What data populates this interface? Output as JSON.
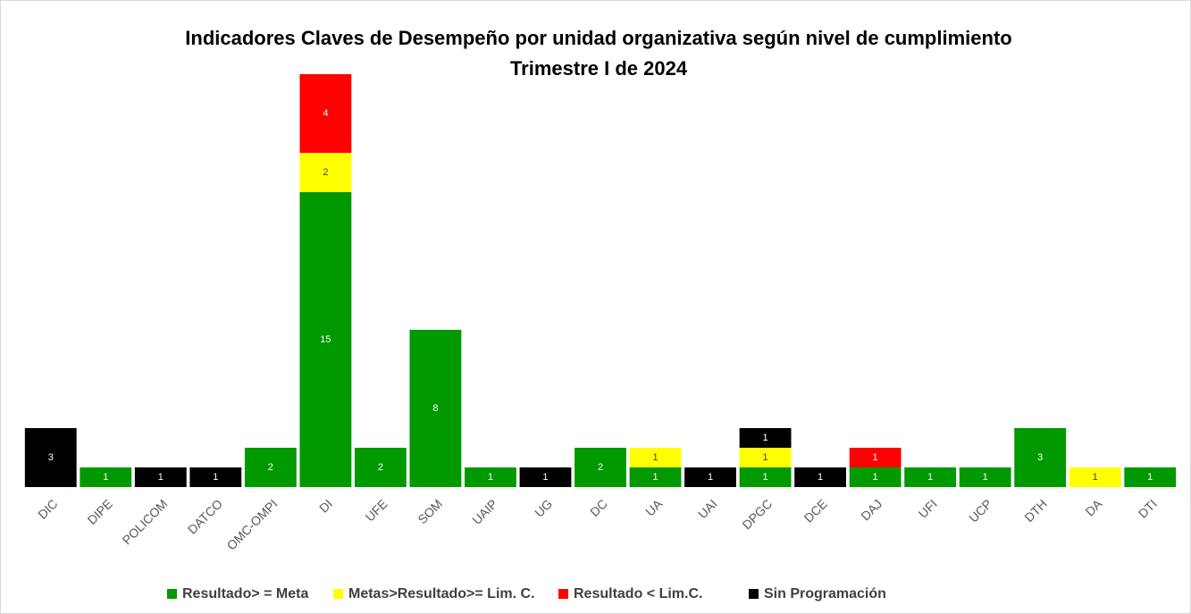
{
  "chart_data": {
    "type": "stacked_bar",
    "title": "Indicadores Claves de Desempeño por unidad organizativa según nivel de cumplimiento",
    "subtitle": "Trimestre I de 2024",
    "categories": [
      "DIC",
      "DIPE",
      "POLICOM",
      "DATCO",
      "OMC-OMPI",
      "DI",
      "UFE",
      "SOM",
      "UAIP",
      "UG",
      "DC",
      "UA",
      "UAI",
      "DPGC",
      "DCE",
      "DAJ",
      "UFI",
      "UCP",
      "DTH",
      "DA",
      "DTI"
    ],
    "series": [
      {
        "name": "Resultado> = Meta",
        "color": "#009900",
        "values": [
          null,
          1,
          null,
          null,
          2,
          15,
          2,
          8,
          1,
          null,
          2,
          1,
          null,
          1,
          null,
          1,
          1,
          1,
          3,
          null,
          1
        ]
      },
      {
        "name": "Metas>Resultado>= Lim. C.",
        "color": "#ffff00",
        "values": [
          null,
          null,
          null,
          null,
          null,
          2,
          null,
          null,
          null,
          null,
          null,
          1,
          null,
          1,
          null,
          null,
          null,
          null,
          null,
          1,
          null
        ]
      },
      {
        "name": "Resultado < Lim.C.",
        "color": "#ff0000",
        "values": [
          null,
          null,
          null,
          null,
          null,
          4,
          null,
          null,
          null,
          null,
          null,
          null,
          null,
          null,
          null,
          1,
          null,
          null,
          null,
          null,
          null
        ]
      },
      {
        "name": "Sin Programación",
        "color": "#000000",
        "values": [
          3,
          null,
          1,
          1,
          null,
          null,
          null,
          null,
          null,
          1,
          null,
          null,
          1,
          1,
          1,
          null,
          null,
          null,
          null,
          null,
          null
        ]
      }
    ],
    "legend": "bottom"
  }
}
